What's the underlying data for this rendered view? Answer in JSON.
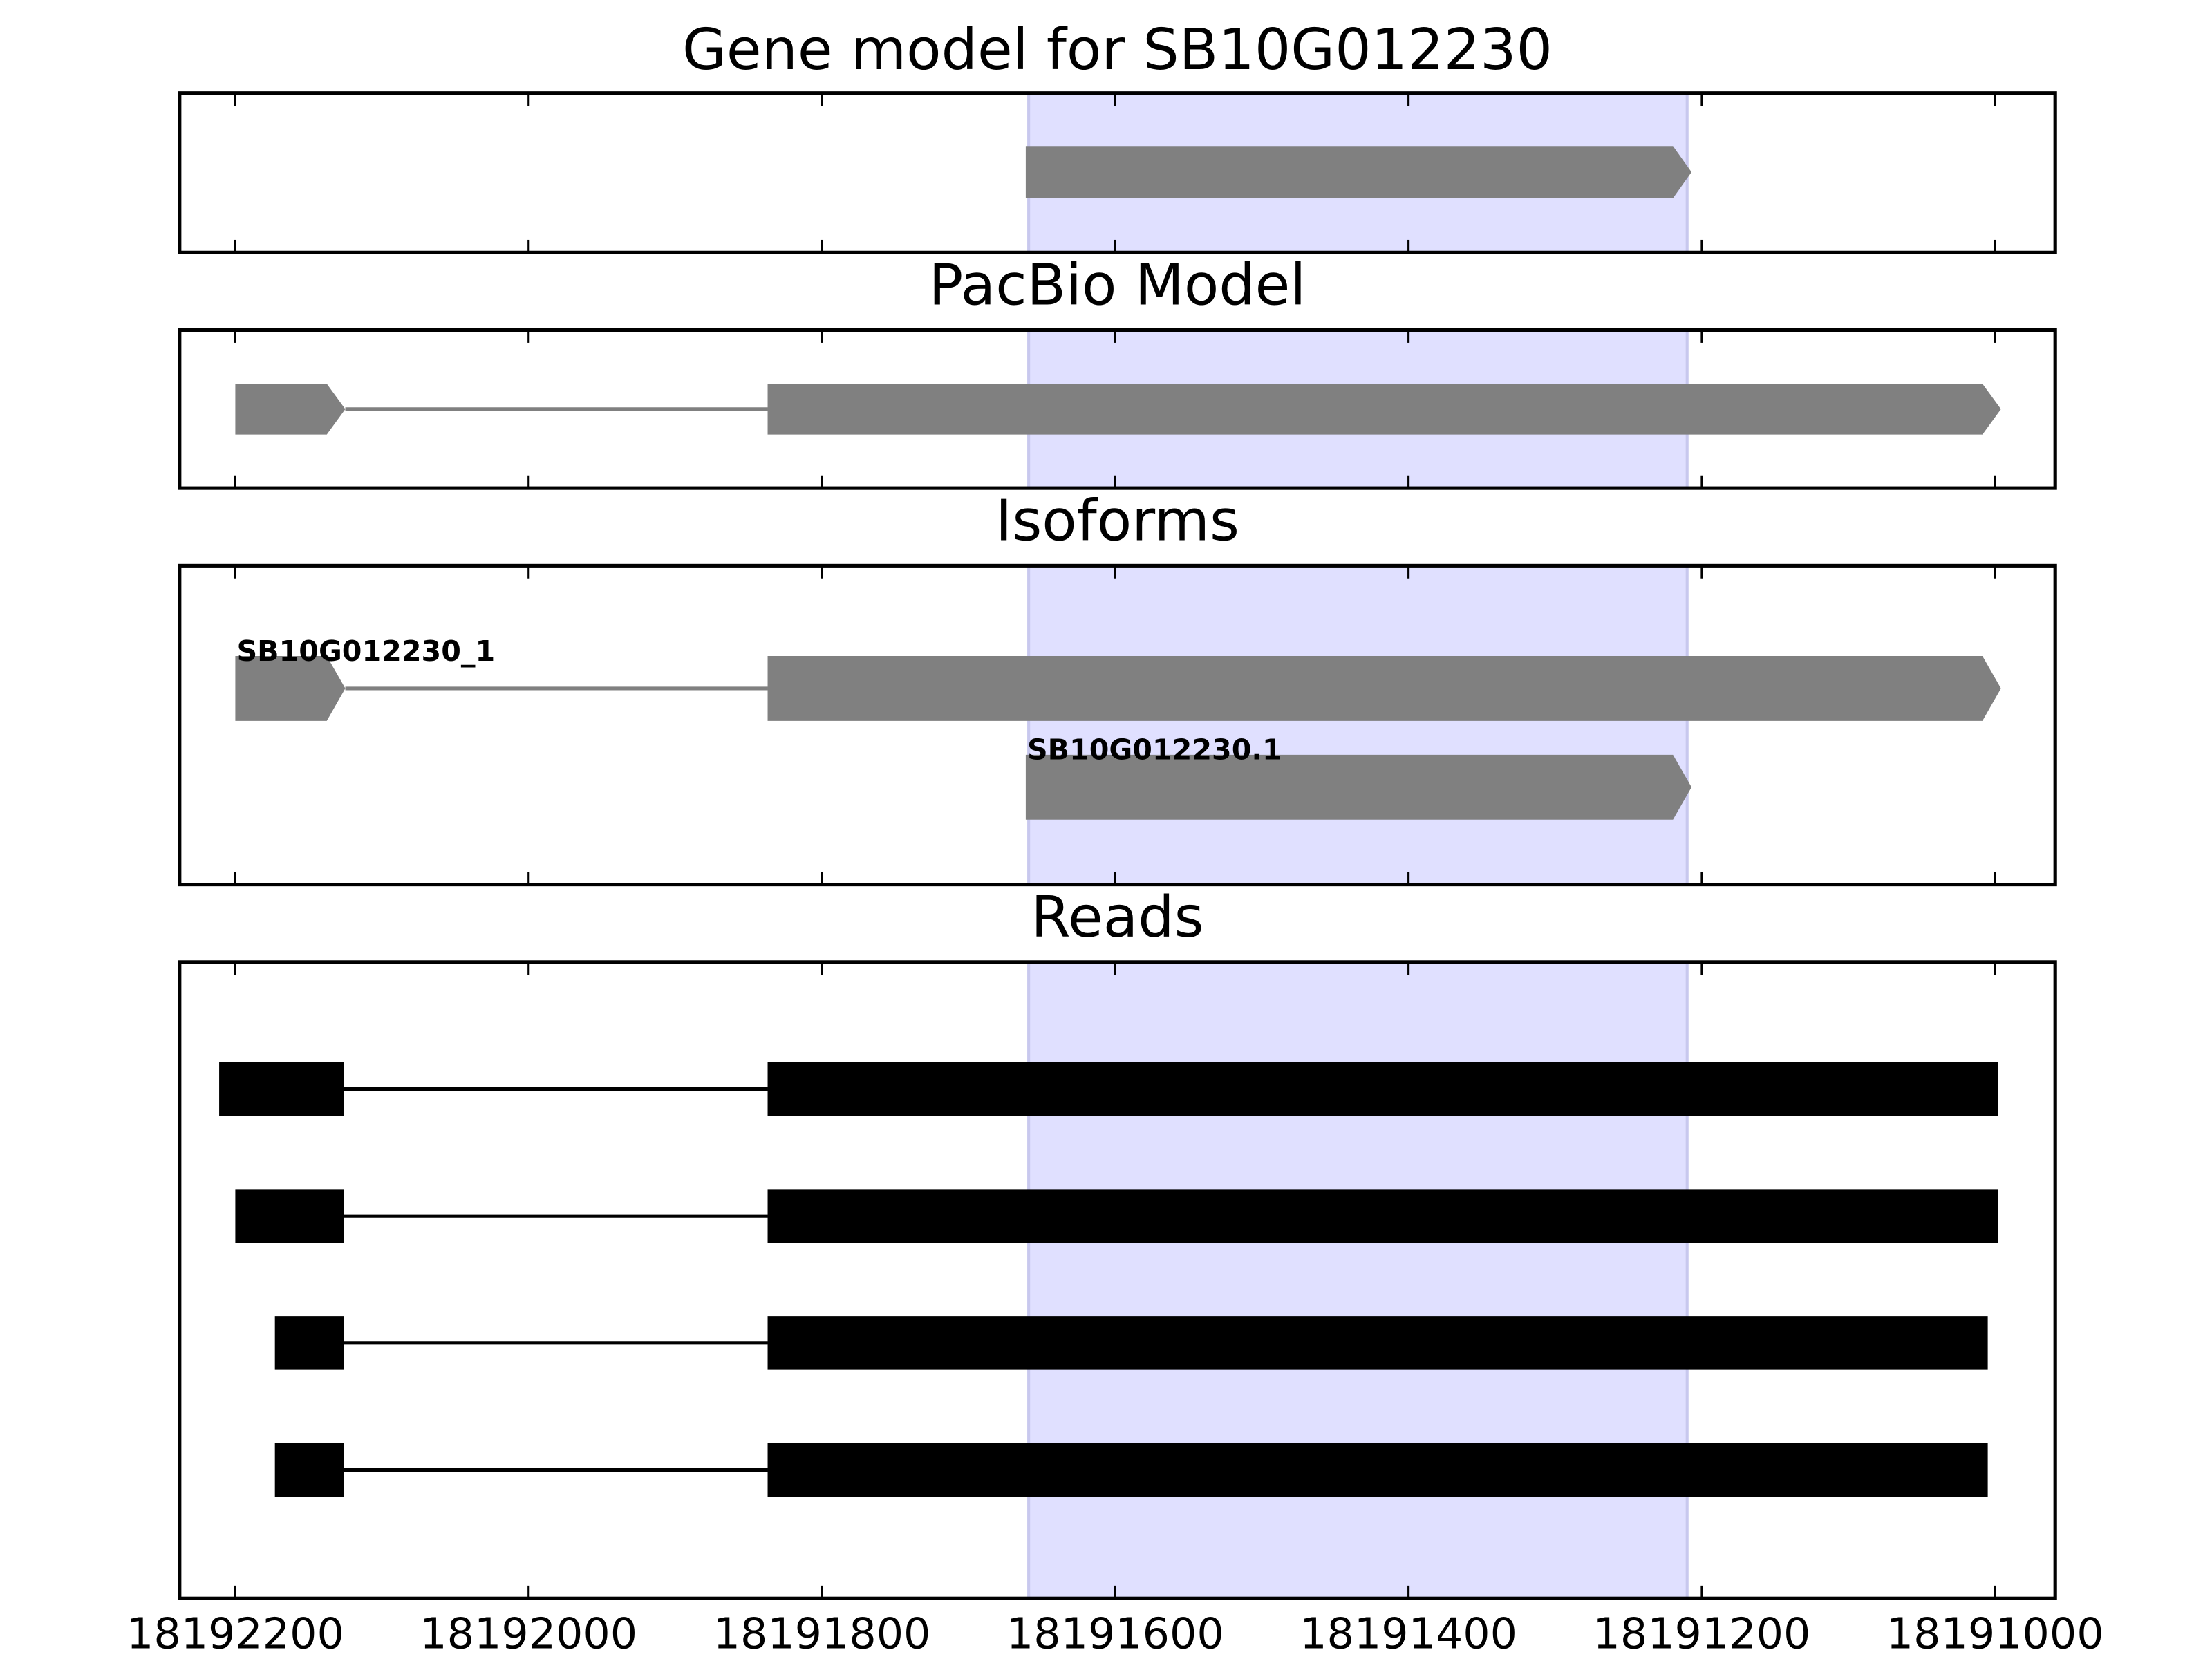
{
  "chart_data": [
    {
      "type": "gene-track",
      "title": "Gene model for SB10G012230",
      "xlim": [
        18192238,
        18190959
      ],
      "xticks": [
        18192200,
        18192000,
        18191800,
        18191600,
        18191400,
        18191200,
        18191000
      ],
      "highlight": [
        18191659,
        18191210
      ],
      "highlight_color": "#e0e0ff",
      "features": [
        {
          "color": "#808080",
          "arrow": true,
          "exons": [
            [
              18191661,
              18191207
            ]
          ]
        }
      ]
    },
    {
      "type": "gene-track",
      "title": "PacBio Model",
      "xlim": [
        18192238,
        18190959
      ],
      "xticks": [
        18192200,
        18192000,
        18191800,
        18191600,
        18191400,
        18191200,
        18191000
      ],
      "highlight": [
        18191659,
        18191210
      ],
      "highlight_color": "#e0e0ff",
      "features": [
        {
          "color": "#808080",
          "arrow": true,
          "exons": [
            [
              18192200,
              18192125
            ],
            [
              18191837,
              18190996
            ]
          ]
        }
      ]
    },
    {
      "type": "gene-track",
      "title": "Isoforms",
      "xlim": [
        18192238,
        18190959
      ],
      "xticks": [
        18192200,
        18192000,
        18191800,
        18191600,
        18191400,
        18191200,
        18191000
      ],
      "highlight": [
        18191659,
        18191210
      ],
      "highlight_color": "#e0e0ff",
      "features": [
        {
          "name": "SB10G012230_1",
          "color": "#808080",
          "arrow": true,
          "exons": [
            [
              18192200,
              18192125
            ],
            [
              18191837,
              18190996
            ]
          ]
        },
        {
          "name": "SB10G012230.1",
          "color": "#808080",
          "arrow": true,
          "exons": [
            [
              18191661,
              18191207
            ]
          ]
        }
      ]
    },
    {
      "type": "gene-track",
      "title": "Reads",
      "xlim": [
        18192238,
        18190959
      ],
      "xticks": [
        18192200,
        18192000,
        18191800,
        18191600,
        18191400,
        18191200,
        18191000
      ],
      "highlight": [
        18191659,
        18191210
      ],
      "highlight_color": "#e0e0ff",
      "features": [
        {
          "color": "#000000",
          "arrow": false,
          "exons": [
            [
              18192211,
              18192126
            ],
            [
              18191837,
              18190998
            ]
          ]
        },
        {
          "color": "#000000",
          "arrow": false,
          "exons": [
            [
              18192200,
              18192126
            ],
            [
              18191837,
              18190998
            ]
          ]
        },
        {
          "color": "#000000",
          "arrow": false,
          "exons": [
            [
              18192173,
              18192126
            ],
            [
              18191837,
              18191005
            ]
          ]
        },
        {
          "color": "#000000",
          "arrow": false,
          "exons": [
            [
              18192173,
              18192126
            ],
            [
              18191837,
              18191005
            ]
          ]
        }
      ]
    }
  ]
}
